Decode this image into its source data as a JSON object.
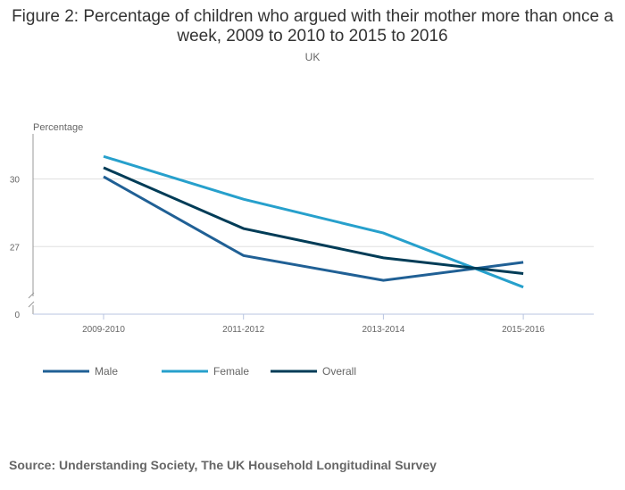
{
  "chart_data": {
    "type": "line",
    "title": "Figure 2: Percentage of children who argued with their mother more than once a week, 2009 to 2010 to 2015 to 2016",
    "subtitle": "UK",
    "ylabel": "Percentage",
    "xlabel": "",
    "categories": [
      "2009-2010",
      "2011-2012",
      "2013-2014",
      "2015-2016"
    ],
    "y_ticks": [
      0,
      27,
      30
    ],
    "ylim": [
      24,
      32
    ],
    "axis_break": true,
    "grid": true,
    "legend_position": "bottom-left",
    "series": [
      {
        "name": "Male",
        "color": "#206095",
        "values": [
          30.1,
          26.6,
          25.5,
          26.3
        ]
      },
      {
        "name": "Female",
        "color": "#27a0cc",
        "values": [
          31.0,
          29.1,
          27.6,
          25.2
        ]
      },
      {
        "name": "Overall",
        "color": "#003c57",
        "values": [
          30.5,
          27.8,
          26.5,
          25.8
        ]
      }
    ]
  },
  "source": "Source: Understanding Society, The UK Household Longitudinal Survey"
}
